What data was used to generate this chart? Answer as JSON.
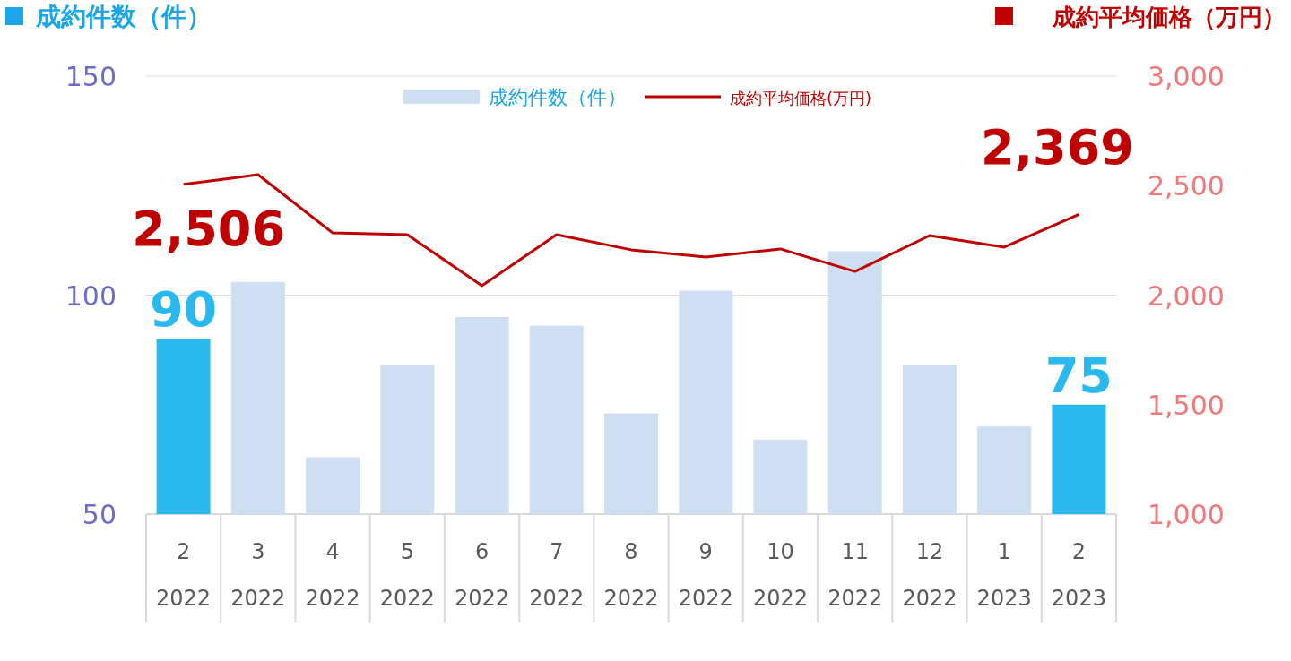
{
  "chart_data": {
    "type": "bar",
    "ylabel": "成約件数（件）",
    "y2label": "成約平均価格（万円）",
    "categories": [
      "2\n2022",
      "3\n2022",
      "4\n2022",
      "5\n2022",
      "6\n2022",
      "7\n2022",
      "8\n2022",
      "9\n2022",
      "10\n2022",
      "11\n2022",
      "12\n2022",
      "1\n2023",
      "2\n2023"
    ],
    "series": [
      {
        "name": "成約件数（件）",
        "color": "#cfdff3",
        "colors": [
          "#29b9ee",
          "#cfdff3",
          "#cfdff3",
          "#cfdff3",
          "#cfdff3",
          "#cfdff3",
          "#cfdff3",
          "#cfdff3",
          "#cfdff3",
          "#cfdff3",
          "#cfdff3",
          "#cfdff3",
          "#29b9ee"
        ],
        "values": [
          90,
          103,
          63,
          84,
          95,
          93,
          73,
          101,
          67,
          110,
          84,
          70,
          75
        ],
        "value_labels": [
          "90",
          null,
          null,
          null,
          null,
          null,
          null,
          null,
          null,
          null,
          null,
          null,
          "75"
        ]
      },
      {
        "name": "成約平均価格(万円)",
        "type": "line",
        "axis": "y2",
        "color": "#c00000",
        "values": [
          2506,
          2550,
          2284,
          2276,
          2043,
          2276,
          2207,
          2174,
          2211,
          2108,
          2272,
          2219,
          2369
        ],
        "value_labels": [
          "2,506",
          null,
          null,
          null,
          null,
          null,
          null,
          null,
          null,
          null,
          null,
          null,
          "2,369"
        ]
      }
    ],
    "ylim": [
      50,
      150
    ],
    "yticks": [
      50,
      100,
      150
    ],
    "y2lim": [
      1000,
      3000
    ],
    "y2ticks": [
      {
        "value": 1000,
        "label": "1,000"
      },
      {
        "value": 1500,
        "label": "1,500"
      },
      {
        "value": 2000,
        "label": "2,000"
      },
      {
        "value": 2500,
        "label": "2,500"
      },
      {
        "value": 3000,
        "label": "3,000"
      }
    ],
    "grid": "y",
    "legend": "top"
  }
}
